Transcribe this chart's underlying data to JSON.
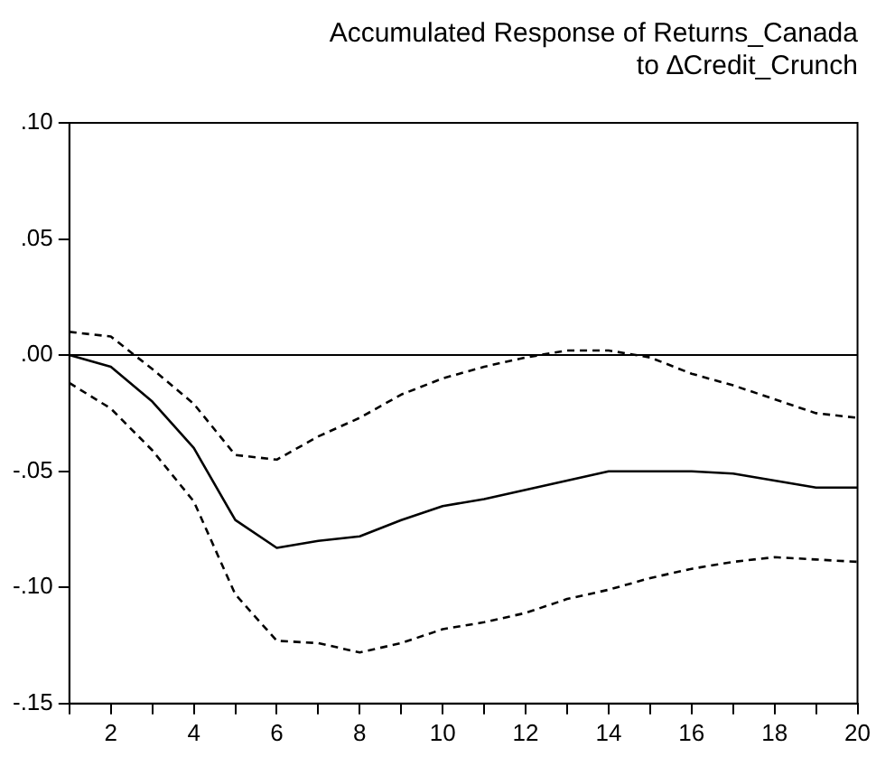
{
  "chart_data": {
    "type": "line",
    "title": "Accumulated Response of Returns_Canada\nto ∆Credit_Crunch",
    "x": [
      1,
      2,
      3,
      4,
      5,
      6,
      7,
      8,
      9,
      10,
      11,
      12,
      13,
      14,
      15,
      16,
      17,
      18,
      19,
      20
    ],
    "series": [
      {
        "color": "#000000",
        "line_style": "solid",
        "values": [
          0.0,
          -0.005,
          -0.02,
          -0.04,
          -0.071,
          -0.083,
          -0.08,
          -0.078,
          -0.071,
          -0.065,
          -0.062,
          -0.058,
          -0.054,
          -0.05,
          -0.05,
          -0.05,
          -0.051,
          -0.054,
          -0.057,
          -0.057
        ]
      },
      {
        "color": "#000000",
        "line_style": "dashed",
        "values": [
          0.01,
          0.008,
          -0.006,
          -0.021,
          -0.043,
          -0.045,
          -0.035,
          -0.027,
          -0.017,
          -0.01,
          -0.005,
          -0.001,
          0.002,
          0.002,
          -0.001,
          -0.008,
          -0.013,
          -0.019,
          -0.025,
          -0.027
        ]
      },
      {
        "color": "#000000",
        "line_style": "dashed",
        "values": [
          -0.012,
          -0.023,
          -0.041,
          -0.063,
          -0.103,
          -0.123,
          -0.124,
          -0.128,
          -0.124,
          -0.118,
          -0.115,
          -0.111,
          -0.105,
          -0.101,
          -0.096,
          -0.092,
          -0.089,
          -0.087,
          -0.088,
          -0.089
        ]
      }
    ],
    "xlim": [
      1,
      20
    ],
    "xticks": [
      {
        "value": 1,
        "label": null
      },
      2,
      {
        "value": 3,
        "label": null
      },
      4,
      {
        "value": 5,
        "label": null
      },
      6,
      {
        "value": 7,
        "label": null
      },
      8,
      {
        "value": 9,
        "label": null
      },
      10,
      {
        "value": 11,
        "label": null
      },
      12,
      {
        "value": 13,
        "label": null
      },
      14,
      {
        "value": 15,
        "label": null
      },
      16,
      {
        "value": 17,
        "label": null
      },
      18,
      {
        "value": 19,
        "label": null
      },
      20
    ],
    "ylim": [
      -0.15,
      0.1
    ],
    "yticks": [
      {
        "value": -0.15,
        "label": "-.15"
      },
      {
        "value": -0.1,
        "label": "-.10"
      },
      {
        "value": -0.05,
        "label": "-.05"
      },
      {
        "value": 0,
        "label": ".00"
      },
      {
        "value": 0.05,
        "label": ".05"
      },
      {
        "value": 0.1,
        "label": ".10"
      }
    ],
    "ref_lines": [
      {
        "axis": "y",
        "value": 0,
        "color": "#000000",
        "line_style": "solid"
      }
    ],
    "grid": false,
    "legend": false,
    "marker": "none"
  }
}
